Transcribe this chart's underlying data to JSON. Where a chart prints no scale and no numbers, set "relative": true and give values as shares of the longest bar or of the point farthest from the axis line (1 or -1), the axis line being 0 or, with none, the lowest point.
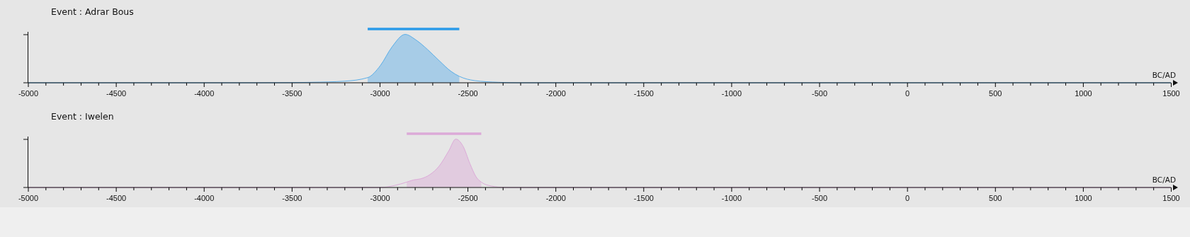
{
  "chart_data": [
    {
      "type": "area",
      "title": "Event : Adrar Bous",
      "xlabel": "BC/AD",
      "relative": true,
      "xlim": [
        -5000,
        1500
      ],
      "xticks": [
        -5000,
        {
          "value": -4900,
          "label": null
        },
        {
          "value": -4800,
          "label": null
        },
        {
          "value": -4700,
          "label": null
        },
        {
          "value": -4600,
          "label": null
        },
        -4500,
        {
          "value": -4400,
          "label": null
        },
        {
          "value": -4300,
          "label": null
        },
        {
          "value": -4200,
          "label": null
        },
        {
          "value": -4100,
          "label": null
        },
        -4000,
        {
          "value": -3900,
          "label": null
        },
        {
          "value": -3800,
          "label": null
        },
        {
          "value": -3700,
          "label": null
        },
        {
          "value": -3600,
          "label": null
        },
        -3500,
        {
          "value": -3400,
          "label": null
        },
        {
          "value": -3300,
          "label": null
        },
        {
          "value": -3200,
          "label": null
        },
        {
          "value": -3100,
          "label": null
        },
        -3000,
        {
          "value": -2900,
          "label": null
        },
        {
          "value": -2800,
          "label": null
        },
        {
          "value": -2700,
          "label": null
        },
        {
          "value": -2600,
          "label": null
        },
        -2500,
        {
          "value": -2400,
          "label": null
        },
        {
          "value": -2300,
          "label": null
        },
        {
          "value": -2200,
          "label": null
        },
        {
          "value": -2100,
          "label": null
        },
        -2000,
        {
          "value": -1900,
          "label": null
        },
        {
          "value": -1800,
          "label": null
        },
        {
          "value": -1700,
          "label": null
        },
        {
          "value": -1600,
          "label": null
        },
        -1500,
        {
          "value": -1400,
          "label": null
        },
        {
          "value": -1300,
          "label": null
        },
        {
          "value": -1200,
          "label": null
        },
        {
          "value": -1100,
          "label": null
        },
        -1000,
        {
          "value": -900,
          "label": null
        },
        {
          "value": -800,
          "label": null
        },
        {
          "value": -700,
          "label": null
        },
        {
          "value": -600,
          "label": null
        },
        -500,
        {
          "value": -400,
          "label": null
        },
        {
          "value": -300,
          "label": null
        },
        {
          "value": -200,
          "label": null
        },
        {
          "value": -100,
          "label": null
        },
        0,
        {
          "value": 100,
          "label": null
        },
        {
          "value": 200,
          "label": null
        },
        {
          "value": 300,
          "label": null
        },
        {
          "value": 400,
          "label": null
        },
        500,
        {
          "value": 600,
          "label": null
        },
        {
          "value": 700,
          "label": null
        },
        {
          "value": 800,
          "label": null
        },
        {
          "value": 900,
          "label": null
        },
        1000,
        {
          "value": 1100,
          "label": null
        },
        {
          "value": 1200,
          "label": null
        },
        {
          "value": 1300,
          "label": null
        },
        {
          "value": 1400,
          "label": null
        },
        1500
      ],
      "series": [
        {
          "color": "#5aaee8",
          "x": [
            -5000,
            -3700,
            -3500,
            -3386,
            -3198,
            -3068,
            -2996,
            -2929,
            -2855,
            -2795,
            -2728,
            -2661,
            -2593,
            -2547,
            -2459,
            -2325,
            -2200,
            1500
          ],
          "values": [
            0,
            0,
            0.003,
            0.009,
            0.03,
            0.096,
            0.32,
            0.67,
            0.9,
            0.8,
            0.62,
            0.41,
            0.21,
            0.12,
            0.04,
            0.009,
            0,
            0
          ]
        },
        {
          "type": "line",
          "color": "#2b9be9",
          "x": [
            -3068,
            -2547
          ],
          "values": [
            1,
            1
          ]
        }
      ]
    },
    {
      "type": "area",
      "title": "Event : Iwelen",
      "xlabel": "BC/AD",
      "relative": true,
      "xlim": [
        -5000,
        1500
      ],
      "xticks": [
        -5000,
        {
          "value": -4900,
          "label": null
        },
        {
          "value": -4800,
          "label": null
        },
        {
          "value": -4700,
          "label": null
        },
        {
          "value": -4600,
          "label": null
        },
        -4500,
        {
          "value": -4400,
          "label": null
        },
        {
          "value": -4300,
          "label": null
        },
        {
          "value": -4200,
          "label": null
        },
        {
          "value": -4100,
          "label": null
        },
        -4000,
        {
          "value": -3900,
          "label": null
        },
        {
          "value": -3800,
          "label": null
        },
        {
          "value": -3700,
          "label": null
        },
        {
          "value": -3600,
          "label": null
        },
        -3500,
        {
          "value": -3400,
          "label": null
        },
        {
          "value": -3300,
          "label": null
        },
        {
          "value": -3200,
          "label": null
        },
        {
          "value": -3100,
          "label": null
        },
        -3000,
        {
          "value": -2900,
          "label": null
        },
        {
          "value": -2800,
          "label": null
        },
        {
          "value": -2700,
          "label": null
        },
        {
          "value": -2600,
          "label": null
        },
        -2500,
        {
          "value": -2400,
          "label": null
        },
        {
          "value": -2300,
          "label": null
        },
        {
          "value": -2200,
          "label": null
        },
        {
          "value": -2100,
          "label": null
        },
        -2000,
        {
          "value": -1900,
          "label": null
        },
        {
          "value": -1800,
          "label": null
        },
        {
          "value": -1700,
          "label": null
        },
        {
          "value": -1600,
          "label": null
        },
        -1500,
        {
          "value": -1400,
          "label": null
        },
        {
          "value": -1300,
          "label": null
        },
        {
          "value": -1200,
          "label": null
        },
        {
          "value": -1100,
          "label": null
        },
        -1000,
        {
          "value": -900,
          "label": null
        },
        {
          "value": -800,
          "label": null
        },
        {
          "value": -700,
          "label": null
        },
        {
          "value": -600,
          "label": null
        },
        -500,
        {
          "value": -400,
          "label": null
        },
        {
          "value": -300,
          "label": null
        },
        {
          "value": -200,
          "label": null
        },
        {
          "value": -100,
          "label": null
        },
        0,
        {
          "value": 100,
          "label": null
        },
        {
          "value": 200,
          "label": null
        },
        {
          "value": 300,
          "label": null
        },
        {
          "value": 400,
          "label": null
        },
        500,
        {
          "value": 600,
          "label": null
        },
        {
          "value": 700,
          "label": null
        },
        {
          "value": 800,
          "label": null
        },
        {
          "value": 900,
          "label": null
        },
        1000,
        {
          "value": 1100,
          "label": null
        },
        {
          "value": 1200,
          "label": null
        },
        {
          "value": 1300,
          "label": null
        },
        {
          "value": 1400,
          "label": null
        },
        1500
      ],
      "series": [
        {
          "color": "#dcaad8",
          "x": [
            -5000,
            -2996,
            -2916,
            -2846,
            -2808,
            -2768,
            -2714,
            -2661,
            -2607,
            -2567,
            -2526,
            -2486,
            -2452,
            -2422,
            -2365,
            -2285,
            1500
          ],
          "values": [
            0,
            0,
            0.036,
            0.1,
            0.14,
            0.16,
            0.24,
            0.4,
            0.68,
            0.9,
            0.77,
            0.44,
            0.2,
            0.1,
            0.027,
            0,
            0
          ]
        },
        {
          "type": "line",
          "color": "#dcaad8",
          "x": [
            -2846,
            -2422
          ],
          "values": [
            1,
            1
          ]
        }
      ]
    }
  ]
}
